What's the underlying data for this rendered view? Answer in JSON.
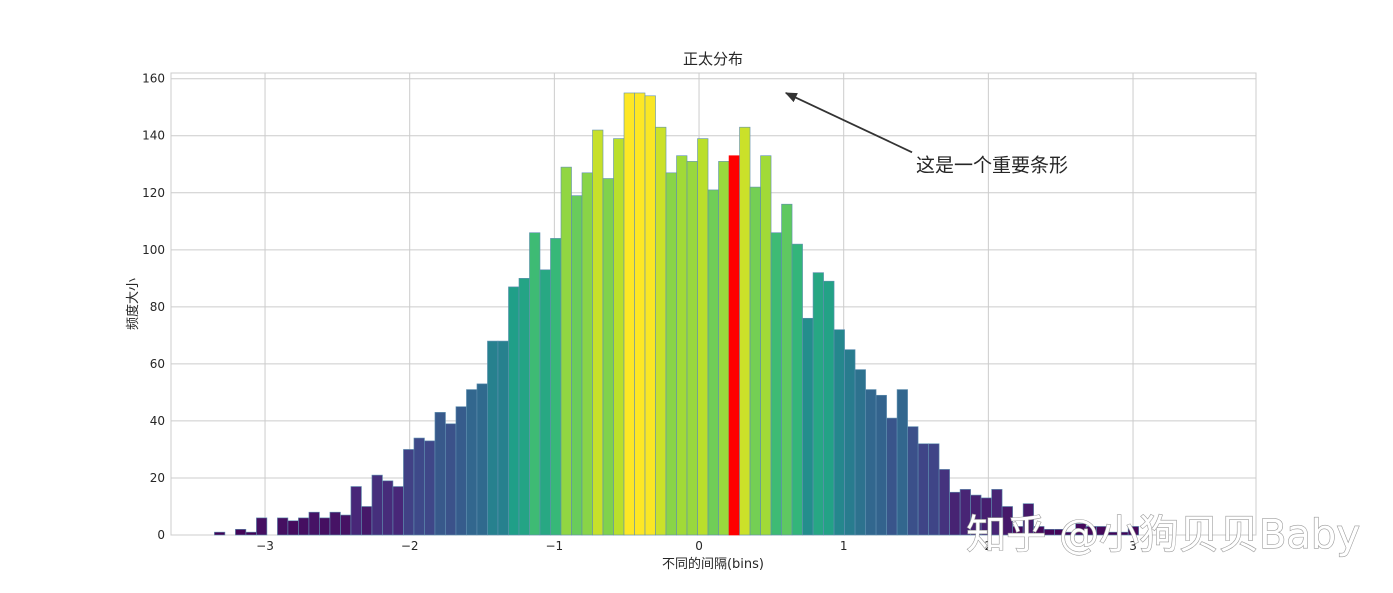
{
  "watermark": "知乎 @小狗贝贝Baby",
  "chart_data": {
    "type": "bar",
    "title": "正太分布",
    "xlabel": "不同的间隔(bins)",
    "ylabel": "频度大小",
    "xlim": [
      -3.65,
      3.85
    ],
    "ylim": [
      0,
      162
    ],
    "xticks": [
      -3,
      -2,
      -1,
      0,
      1,
      2,
      3
    ],
    "xtick_labels": [
      "−3",
      "−2",
      "−1",
      "0",
      "1",
      "2",
      "3"
    ],
    "yticks": [
      0,
      20,
      40,
      60,
      80,
      100,
      120,
      140,
      160
    ],
    "grid": true,
    "bin_start": -3.35,
    "bin_width": 0.0726,
    "values": [
      1,
      0,
      2,
      1,
      6,
      0,
      6,
      5,
      6,
      8,
      6,
      8,
      7,
      17,
      10,
      21,
      19,
      17,
      30,
      34,
      33,
      43,
      39,
      45,
      51,
      53,
      68,
      68,
      87,
      90,
      106,
      93,
      104,
      129,
      119,
      127,
      142,
      125,
      139,
      155,
      155,
      154,
      143,
      127,
      133,
      131,
      139,
      121,
      131,
      133,
      143,
      122,
      133,
      106,
      116,
      102,
      76,
      92,
      89,
      72,
      65,
      58,
      51,
      49,
      41,
      51,
      38,
      32,
      32,
      23,
      15,
      16,
      14,
      13,
      16,
      10,
      3,
      11,
      3,
      2,
      2,
      1,
      4,
      3,
      3,
      1,
      1,
      3
    ],
    "highlight_index": 49,
    "highlight_color": "#ff0000",
    "colormap": "viridis",
    "annotation": {
      "text": "这是一个重要条形",
      "xy": [
        0.6,
        155
      ],
      "xytext": [
        1.5,
        130
      ]
    }
  }
}
